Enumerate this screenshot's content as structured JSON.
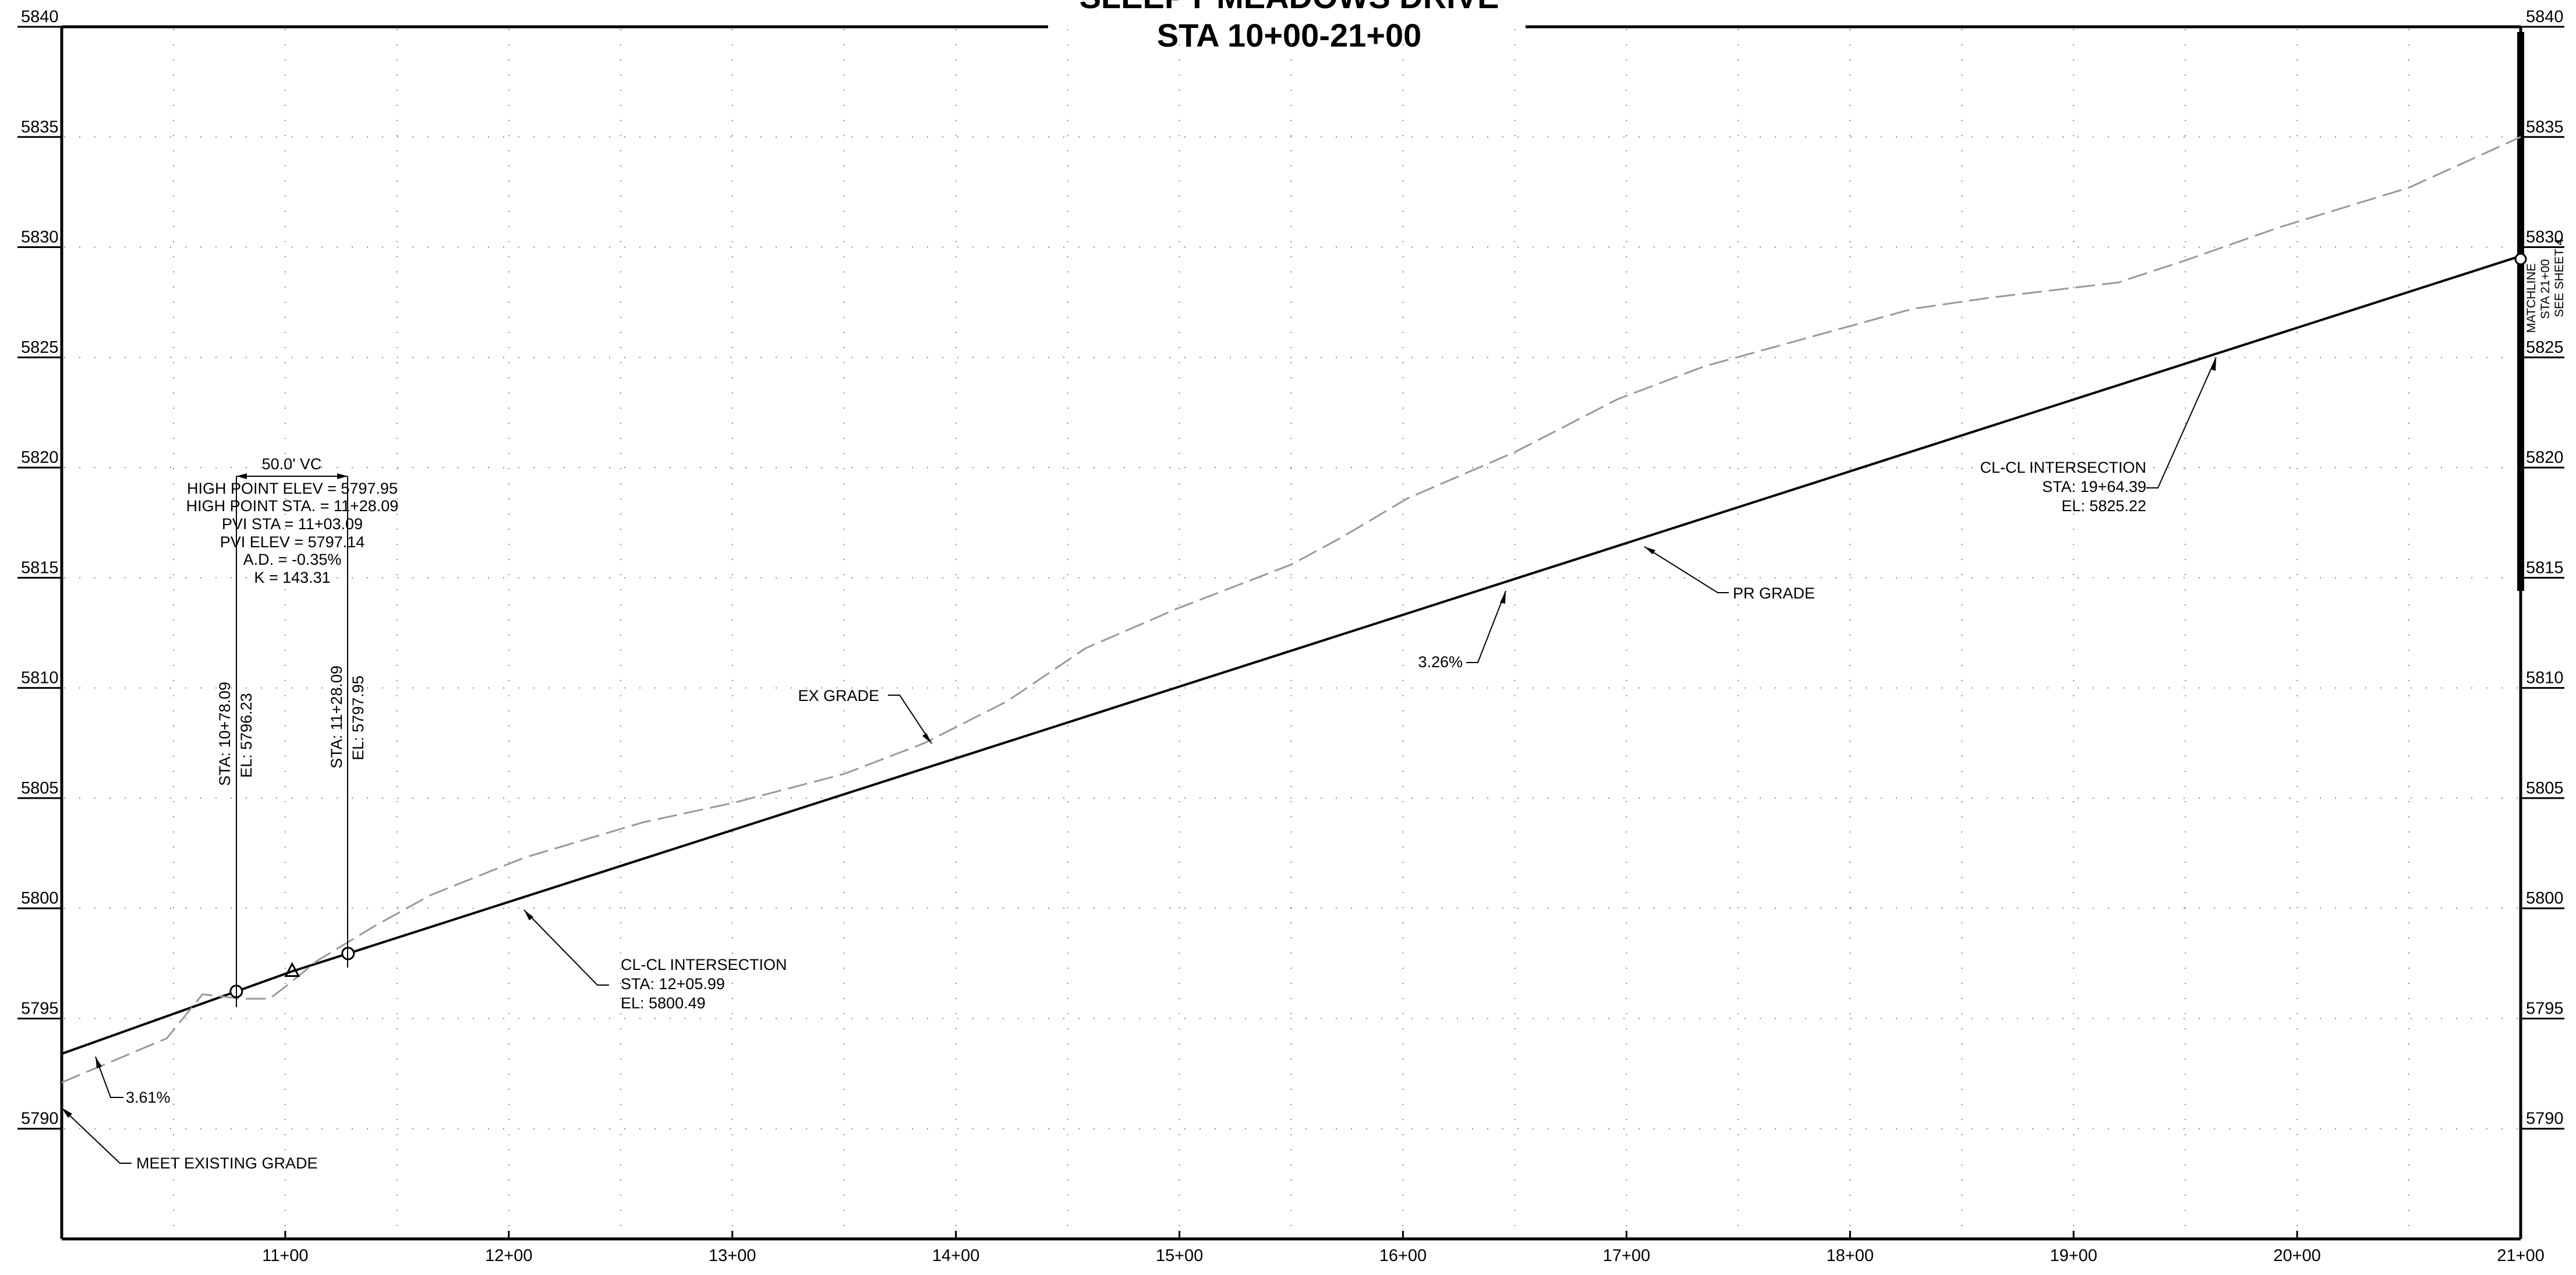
{
  "title": "SLEEPY MEADOWS DRIVE",
  "subtitle": "STA 10+00-21+00",
  "chart_data": {
    "type": "line",
    "title": "SLEEPY MEADOWS DRIVE",
    "subtitle": "STA 10+00-21+00",
    "xlabel": "",
    "ylabel": "",
    "xlim": [
      1000,
      2100
    ],
    "ylim": [
      5785,
      5840
    ],
    "grid": true,
    "x_ticks": [
      1100,
      1200,
      1300,
      1400,
      1500,
      1600,
      1700,
      1800,
      1900,
      2000,
      2100
    ],
    "x_tick_labels": [
      "11+00",
      "12+00",
      "13+00",
      "14+00",
      "15+00",
      "16+00",
      "17+00",
      "18+00",
      "19+00",
      "20+00",
      "21+00"
    ],
    "y_ticks": [
      5790,
      5795,
      5800,
      5805,
      5810,
      5815,
      5820,
      5825,
      5830,
      5835,
      5840
    ],
    "y_tick_labels": [
      "5790",
      "5795",
      "5800",
      "5805",
      "5810",
      "5815",
      "5820",
      "5825",
      "5830",
      "5835",
      "5840"
    ],
    "series": [
      {
        "style": "solid",
        "color": "#000000",
        "x": [
          1000,
          1078.09,
          1103.09,
          1128.09,
          2100
        ],
        "y": [
          5793.4,
          5796.23,
          5797.14,
          5797.95,
          5829.6
        ]
      },
      {
        "style": "dashed",
        "color": "#999999",
        "x": [
          1000,
          1047,
          1063,
          1080,
          1093,
          1102,
          1114,
          1140,
          1165,
          1207,
          1260,
          1301,
          1350,
          1386,
          1423,
          1458,
          1499,
          1550,
          1572,
          1602,
          1650,
          1696,
          1735,
          1785,
          1828,
          1862,
          1920,
          1950,
          1992,
          2050,
          2100
        ],
        "y": [
          5792.1,
          5794.1,
          5796.1,
          5795.9,
          5795.9,
          5796.6,
          5797.6,
          5799.2,
          5800.6,
          5802.3,
          5803.9,
          5804.8,
          5806.1,
          5807.5,
          5809.4,
          5811.8,
          5813.6,
          5815.6,
          5816.8,
          5818.6,
          5820.7,
          5823.1,
          5824.6,
          5826.0,
          5827.2,
          5827.7,
          5828.4,
          5829.4,
          5830.9,
          5832.7,
          5835.0
        ]
      }
    ],
    "vc_points": [
      {
        "sta": 1078.09,
        "elev": 5796.23,
        "label_sta": "STA: 10+78.09",
        "label_el": "EL: 5796.23"
      },
      {
        "sta": 1128.09,
        "elev": 5797.95,
        "label_sta": "STA: 11+28.09",
        "label_el": "EL: 5797.95"
      }
    ],
    "pvi_marker": {
      "sta": 1103.09,
      "elev": 5797.14
    },
    "vc_info": {
      "length": "50.0' VC",
      "lines": [
        "HIGH POINT ELEV = 5797.95",
        "HIGH POINT STA. = 11+28.09",
        "PVI STA = 11+03.09",
        "PVI ELEV = 5797.14",
        "A.D. = -0.35%",
        "K = 143.31"
      ]
    },
    "annotations": {
      "ex_grade": "EX GRADE",
      "pr_grade": "PR GRADE",
      "slope_left": "3.61%",
      "slope_right": "3.26%",
      "meet_existing": "MEET EXISTING GRADE",
      "intersection_1": {
        "title": "CL-CL INTERSECTION",
        "sta": "STA: 12+05.99",
        "el": "EL: 5800.49"
      },
      "intersection_2": {
        "title": "CL-CL INTERSECTION",
        "sta": "STA: 19+64.39",
        "el": "EL: 5825.22"
      },
      "matchline": [
        "MATCHLINE",
        "STA 21+00",
        "SEE SHEET 4"
      ]
    }
  }
}
